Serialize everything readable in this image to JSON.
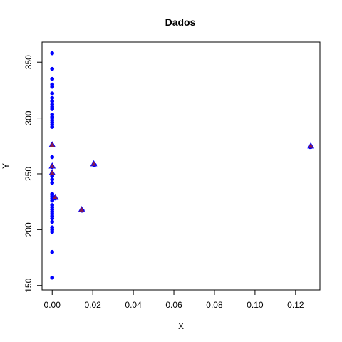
{
  "chart_data": {
    "type": "scatter",
    "title": "Dados",
    "xlabel": "X",
    "ylabel": "Y",
    "xlim": [
      -0.005,
      0.132
    ],
    "ylim": [
      146,
      368
    ],
    "x_ticks": [
      "0.00",
      "0.02",
      "0.04",
      "0.06",
      "0.08",
      "0.10",
      "0.12"
    ],
    "y_ticks": [
      "150",
      "200",
      "250",
      "300",
      "350"
    ],
    "grid": false,
    "legend": "none",
    "series": [
      {
        "marker": "circle",
        "color": "#0000ff",
        "points": [
          [
            0,
            358
          ],
          [
            0,
            344
          ],
          [
            0,
            335
          ],
          [
            0,
            330
          ],
          [
            0,
            328
          ],
          [
            0,
            322
          ],
          [
            0,
            318
          ],
          [
            0,
            315
          ],
          [
            0,
            312
          ],
          [
            0,
            310
          ],
          [
            0,
            308
          ],
          [
            0,
            303
          ],
          [
            0,
            301
          ],
          [
            0,
            300
          ],
          [
            0,
            298
          ],
          [
            0,
            296
          ],
          [
            0,
            294
          ],
          [
            0,
            292
          ],
          [
            0,
            276
          ],
          [
            0,
            265
          ],
          [
            0,
            257
          ],
          [
            0,
            256
          ],
          [
            0,
            250
          ],
          [
            0,
            248
          ],
          [
            0,
            245
          ],
          [
            0,
            242
          ],
          [
            0,
            232
          ],
          [
            0,
            230
          ],
          [
            0,
            228
          ],
          [
            0,
            226
          ],
          [
            0,
            222
          ],
          [
            0,
            220
          ],
          [
            0,
            218
          ],
          [
            0,
            216
          ],
          [
            0,
            214
          ],
          [
            0,
            212
          ],
          [
            0,
            210
          ],
          [
            0,
            207
          ],
          [
            0,
            202
          ],
          [
            0,
            200
          ],
          [
            0,
            198
          ],
          [
            0,
            180
          ],
          [
            0,
            157
          ],
          [
            0.0015,
            228
          ],
          [
            0.0145,
            217
          ],
          [
            0.015,
            217
          ],
          [
            0.0205,
            258
          ],
          [
            0.021,
            258
          ],
          [
            0.127,
            274
          ],
          [
            0.1275,
            274
          ]
        ]
      },
      {
        "marker": "triangle",
        "color": "#8b1a4a",
        "points": [
          [
            0,
            276
          ],
          [
            0,
            257
          ],
          [
            0,
            251
          ],
          [
            0.0015,
            229
          ],
          [
            0.0145,
            218
          ],
          [
            0.0205,
            259
          ],
          [
            0.1275,
            275
          ]
        ]
      }
    ]
  }
}
